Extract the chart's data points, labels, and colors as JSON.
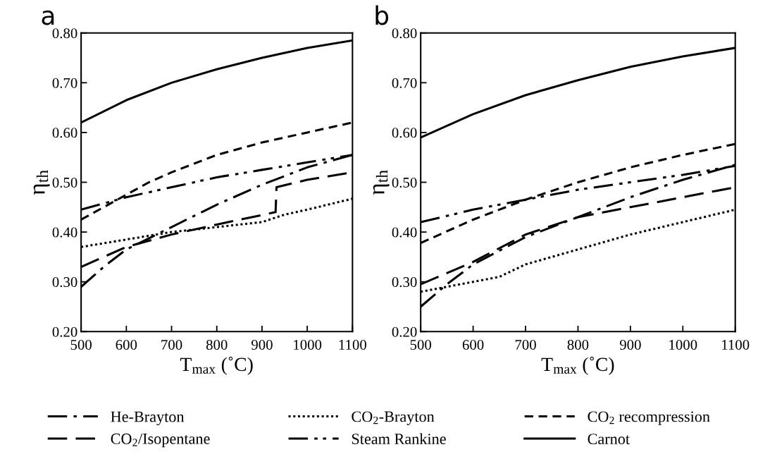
{
  "chart_data": [
    {
      "type": "line",
      "annotations": [
        "a"
      ],
      "xlabel": "T$_{max}$ (˚C)",
      "ylabel": "η$_{th}$",
      "xlim": [
        500,
        1100
      ],
      "xticks": [
        500,
        600,
        700,
        800,
        900,
        1000,
        1100
      ],
      "ylim": [
        0.2,
        0.8
      ],
      "yticks": [
        {
          "value": 0.2,
          "label": "0.20"
        },
        {
          "value": 0.3,
          "label": "0.30"
        },
        {
          "value": 0.4,
          "label": "0.40"
        },
        {
          "value": 0.5,
          "label": "0.50"
        },
        {
          "value": 0.6,
          "label": "0.60"
        },
        {
          "value": 0.7,
          "label": "0.70"
        },
        {
          "value": 0.8,
          "label": "0.80"
        }
      ],
      "grid": false,
      "legend": "bottom",
      "series": [
        {
          "name": "He-Brayton",
          "color": "#000000",
          "line_style": "dashdot",
          "x": [
            500,
            550,
            600,
            700,
            800,
            900,
            1000,
            1100
          ],
          "values": [
            0.29,
            0.33,
            0.365,
            0.41,
            0.455,
            0.495,
            0.53,
            0.555
          ]
        },
        {
          "name": "CO$_{2}$/Isopentane",
          "color": "#000000",
          "line_style": "longdash",
          "x": [
            500,
            600,
            700,
            800,
            930,
            932,
            1000,
            1100
          ],
          "values": [
            0.33,
            0.37,
            0.395,
            0.415,
            0.44,
            0.49,
            0.505,
            0.52
          ]
        },
        {
          "name": "CO$_{2}$-Brayton",
          "color": "#000000",
          "line_style": "dotted",
          "x": [
            500,
            600,
            700,
            800,
            900,
            950,
            1000,
            1100
          ],
          "values": [
            0.37,
            0.385,
            0.4,
            0.41,
            0.42,
            0.435,
            0.445,
            0.467
          ]
        },
        {
          "name": "Steam Rankine",
          "color": "#000000",
          "line_style": "dashdotdot",
          "x": [
            500,
            600,
            700,
            800,
            900,
            1000,
            1100
          ],
          "values": [
            0.445,
            0.47,
            0.49,
            0.51,
            0.525,
            0.54,
            0.555
          ]
        },
        {
          "name": "CO$_{2}$ recompression",
          "color": "#000000",
          "line_style": "dashed",
          "x": [
            500,
            550,
            600,
            650,
            700,
            800,
            900,
            1000,
            1100
          ],
          "values": [
            0.425,
            0.45,
            0.475,
            0.5,
            0.52,
            0.555,
            0.58,
            0.6,
            0.62
          ]
        },
        {
          "name": "Carnot",
          "color": "#000000",
          "line_style": "solid",
          "x": [
            500,
            600,
            700,
            800,
            900,
            1000,
            1100
          ],
          "values": [
            0.62,
            0.665,
            0.7,
            0.727,
            0.75,
            0.77,
            0.785
          ]
        }
      ]
    },
    {
      "type": "line",
      "annotations": [
        "b"
      ],
      "xlabel": "T$_{max}$ (˚C)",
      "ylabel": "η$_{th}$",
      "xlim": [
        500,
        1100
      ],
      "xticks": [
        500,
        600,
        700,
        800,
        900,
        1000,
        1100
      ],
      "ylim": [
        0.2,
        0.8
      ],
      "yticks": [
        {
          "value": 0.2,
          "label": "0.20"
        },
        {
          "value": 0.3,
          "label": "0.30"
        },
        {
          "value": 0.4,
          "label": "0.40"
        },
        {
          "value": 0.5,
          "label": "0.50"
        },
        {
          "value": 0.6,
          "label": "0.60"
        },
        {
          "value": 0.7,
          "label": "0.70"
        },
        {
          "value": 0.8,
          "label": "0.80"
        }
      ],
      "grid": false,
      "series": [
        {
          "color": "#000000",
          "line_style": "dashdot",
          "x": [
            500,
            550,
            600,
            700,
            800,
            900,
            1000,
            1100
          ],
          "values": [
            0.25,
            0.295,
            0.335,
            0.39,
            0.43,
            0.47,
            0.505,
            0.535
          ]
        },
        {
          "color": "#000000",
          "line_style": "longdash",
          "x": [
            500,
            600,
            700,
            800,
            900,
            1000,
            1100
          ],
          "values": [
            0.295,
            0.34,
            0.395,
            0.43,
            0.45,
            0.47,
            0.49
          ]
        },
        {
          "color": "#000000",
          "line_style": "dotted",
          "x": [
            500,
            600,
            650,
            700,
            800,
            900,
            1000,
            1100
          ],
          "values": [
            0.28,
            0.3,
            0.31,
            0.335,
            0.365,
            0.395,
            0.42,
            0.445
          ]
        },
        {
          "color": "#000000",
          "line_style": "dashdotdot",
          "x": [
            500,
            600,
            700,
            800,
            900,
            1000,
            1100
          ],
          "values": [
            0.42,
            0.445,
            0.465,
            0.485,
            0.5,
            0.515,
            0.533
          ]
        },
        {
          "color": "#000000",
          "line_style": "dashed",
          "x": [
            500,
            600,
            700,
            800,
            900,
            1000,
            1100
          ],
          "values": [
            0.378,
            0.425,
            0.465,
            0.5,
            0.53,
            0.555,
            0.577
          ]
        },
        {
          "color": "#000000",
          "line_style": "solid",
          "x": [
            500,
            600,
            700,
            800,
            900,
            1000,
            1100
          ],
          "values": [
            0.59,
            0.637,
            0.675,
            0.705,
            0.732,
            0.753,
            0.77
          ]
        }
      ]
    }
  ]
}
